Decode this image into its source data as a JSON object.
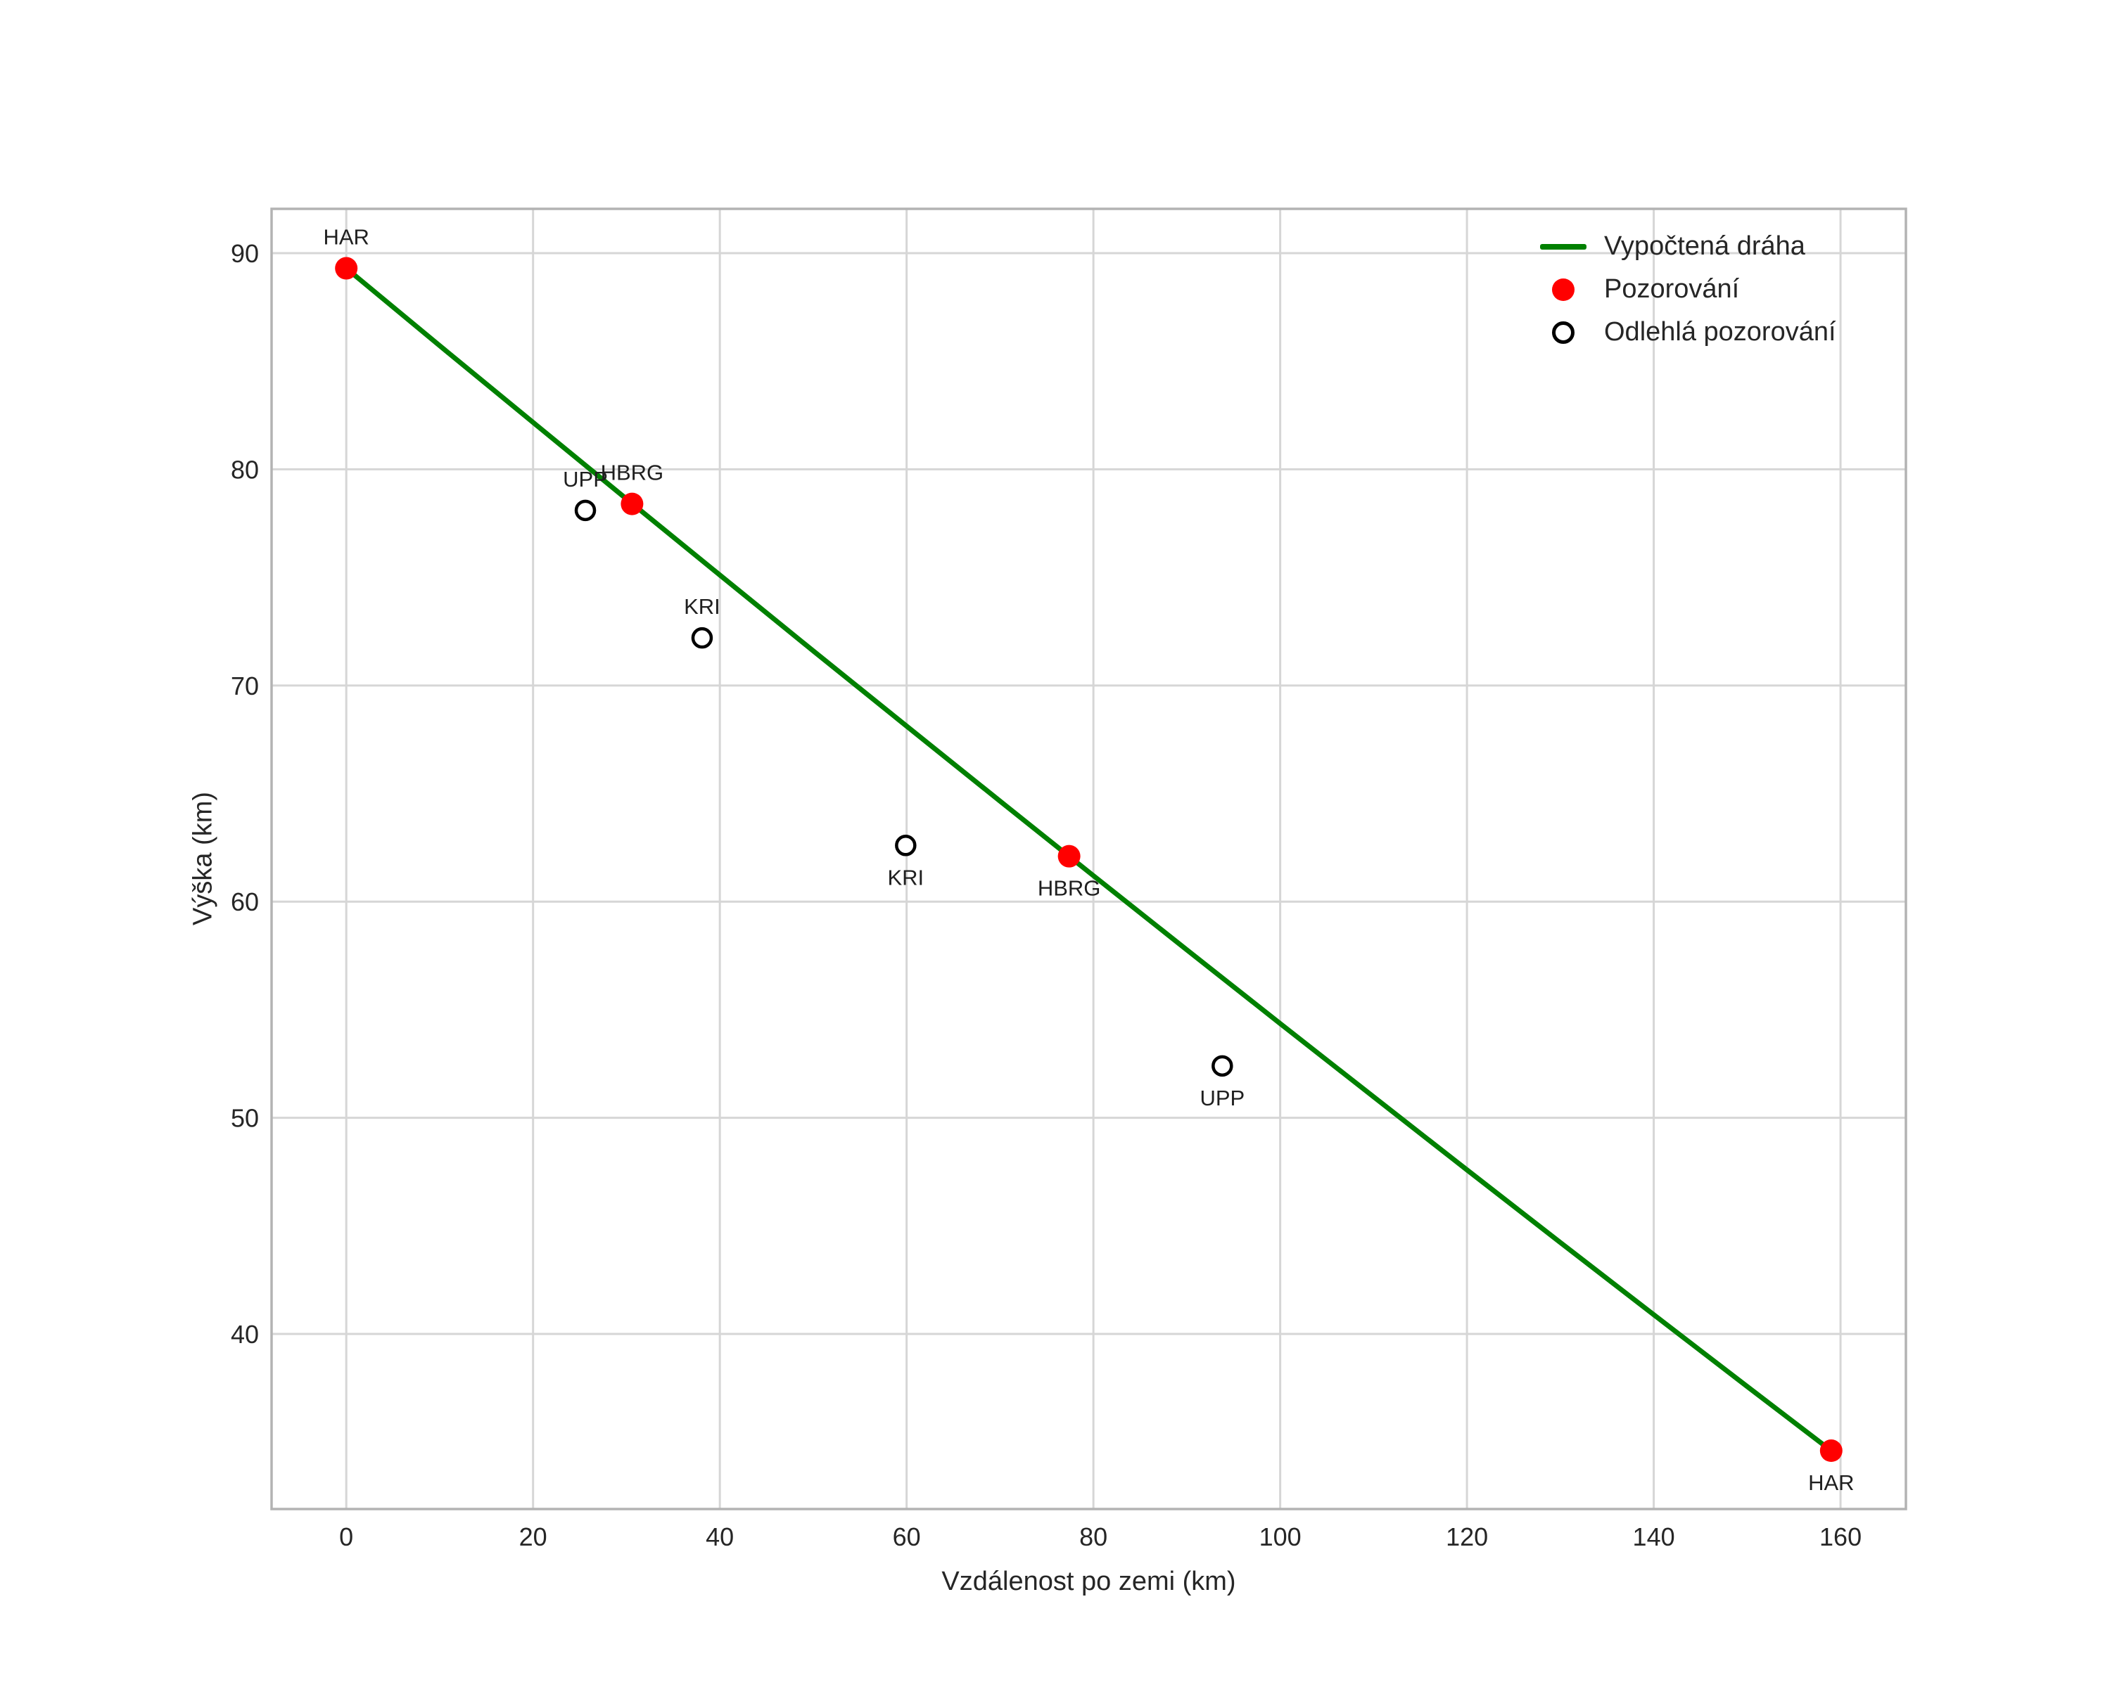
{
  "figure": {
    "background": "#ffffff",
    "text_color": "#262626",
    "grid_color": "#d6d6d6",
    "spine_color": "#b3b3b3"
  },
  "chart_data": {
    "type": "line",
    "title": "",
    "xlabel": "Vzdálenost po zemi (km)",
    "ylabel": "Výška (km)",
    "xlim": [
      -8,
      167
    ],
    "ylim": [
      31.9,
      92.05
    ],
    "x_ticks": [
      0,
      20,
      40,
      60,
      80,
      100,
      120,
      140,
      160
    ],
    "y_ticks": [
      40,
      50,
      60,
      70,
      80,
      90
    ],
    "grid": true,
    "legend_position": "upper right",
    "legend_frame": false,
    "series": [
      {
        "name": "Vypočtená dráha",
        "type": "line",
        "color": "#008000",
        "line_width": 7,
        "points": [
          [
            0,
            89.3
          ],
          [
            10,
            85.72
          ],
          [
            20,
            82.17
          ],
          [
            30,
            78.63
          ],
          [
            40,
            75.11
          ],
          [
            50,
            71.6
          ],
          [
            60,
            68.12
          ],
          [
            70,
            64.65
          ],
          [
            80,
            61.2
          ],
          [
            90,
            57.77
          ],
          [
            100,
            54.36
          ],
          [
            110,
            50.97
          ],
          [
            120,
            47.59
          ],
          [
            130,
            44.23
          ],
          [
            140,
            40.89
          ],
          [
            150,
            37.57
          ],
          [
            159,
            34.6
          ]
        ]
      },
      {
        "name": "Pozorování",
        "type": "scatter",
        "marker": "filled-circle",
        "color": "#ff0000",
        "marker_radius": 16,
        "points": [
          {
            "x": 0,
            "y": 89.3,
            "label": "HAR",
            "label_pos": "above"
          },
          {
            "x": 30.6,
            "y": 78.4,
            "label": "HBRG",
            "label_pos": "above"
          },
          {
            "x": 77.4,
            "y": 62.1,
            "label": "HBRG",
            "label_pos": "below"
          },
          {
            "x": 159,
            "y": 34.6,
            "label": "HAR",
            "label_pos": "below"
          }
        ]
      },
      {
        "name": "Odlehlá pozorování",
        "type": "scatter",
        "marker": "open-circle",
        "color": "#000000",
        "marker_radius": 13,
        "points": [
          {
            "x": 25.6,
            "y": 78.1,
            "label": "UPP",
            "label_pos": "above"
          },
          {
            "x": 38.1,
            "y": 72.2,
            "label": "KRI",
            "label_pos": "above"
          },
          {
            "x": 59.9,
            "y": 62.6,
            "label": "KRI",
            "label_pos": "below"
          },
          {
            "x": 93.8,
            "y": 52.4,
            "label": "UPP",
            "label_pos": "below"
          }
        ]
      }
    ]
  }
}
